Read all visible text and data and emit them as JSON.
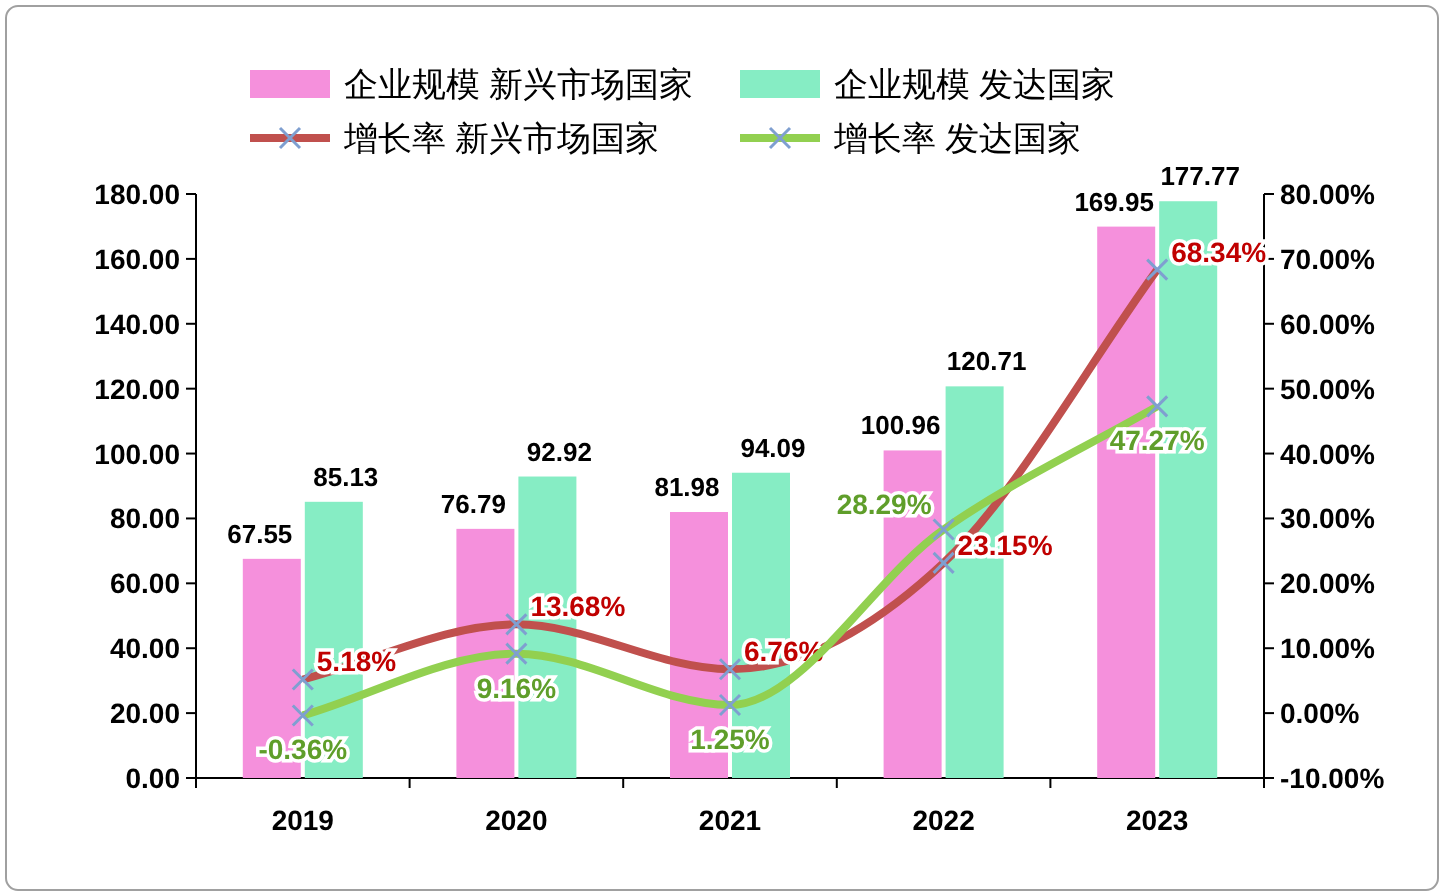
{
  "chart_data": {
    "type": "bar",
    "categories": [
      "2019",
      "2020",
      "2021",
      "2022",
      "2023"
    ],
    "series": [
      {
        "name": "企业规模 新兴市场国家",
        "color": "#f590dc",
        "values": [
          67.55,
          76.79,
          81.98,
          100.96,
          169.95
        ],
        "value_labels": [
          "67.55",
          "76.79",
          "81.98",
          "100.96",
          "169.95"
        ]
      },
      {
        "name": "企业规模 发达国家",
        "color": "#86edc4",
        "values": [
          85.13,
          92.92,
          94.09,
          120.71,
          177.77
        ],
        "value_labels": [
          "85.13",
          "92.92",
          "94.09",
          "120.71",
          "177.77"
        ]
      },
      {
        "name": "增长率 新兴市场国家",
        "type": "line",
        "axis": "y2",
        "color": "#c0504d",
        "values": [
          5.18,
          13.68,
          6.76,
          23.15,
          68.34
        ],
        "value_labels": [
          "5.18%",
          "13.68%",
          "6.76%",
          "23.15%",
          "68.34%"
        ]
      },
      {
        "name": "增长率 发达国家",
        "type": "line",
        "axis": "y2",
        "color": "#92d050",
        "values": [
          -0.36,
          9.16,
          1.25,
          28.29,
          47.27
        ],
        "value_labels": [
          "-0.36%",
          "9.16%",
          "1.25%",
          "28.29%",
          "47.27%"
        ]
      }
    ],
    "ylim": [
      0,
      180
    ],
    "yticks": [
      {
        "value": 0,
        "label": "0.00"
      },
      {
        "value": 20,
        "label": "20.00"
      },
      {
        "value": 40,
        "label": "40.00"
      },
      {
        "value": 60,
        "label": "60.00"
      },
      {
        "value": 80,
        "label": "80.00"
      },
      {
        "value": 100,
        "label": "100.00"
      },
      {
        "value": 120,
        "label": "120.00"
      },
      {
        "value": 140,
        "label": "140.00"
      },
      {
        "value": 160,
        "label": "160.00"
      },
      {
        "value": 180,
        "label": "180.00"
      }
    ],
    "y2lim": [
      -10,
      80
    ],
    "y2ticks": [
      {
        "value": -10,
        "label": "-10.00%"
      },
      {
        "value": 0,
        "label": "0.00%"
      },
      {
        "value": 10,
        "label": "10.00%"
      },
      {
        "value": 20,
        "label": "20.00%"
      },
      {
        "value": 30,
        "label": "30.00%"
      },
      {
        "value": 40,
        "label": "40.00%"
      },
      {
        "value": 50,
        "label": "50.00%"
      },
      {
        "value": 60,
        "label": "60.00%"
      },
      {
        "value": 70,
        "label": "70.00%"
      },
      {
        "value": 80,
        "label": "80.00%"
      }
    ],
    "legend": "top",
    "marker": "cross"
  }
}
